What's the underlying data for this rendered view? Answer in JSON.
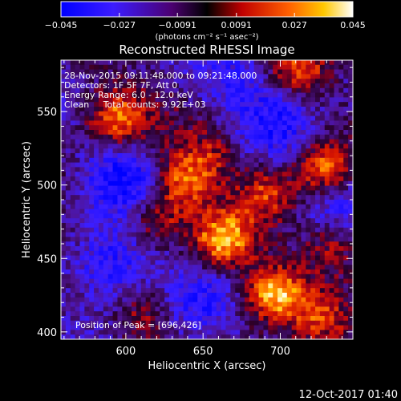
{
  "colorbar": {
    "min_label": "−0.045",
    "tick_labels": [
      "−0.027",
      "−0.0091",
      "0.0091",
      "0.027",
      "0.045"
    ],
    "unit_label": "(photons cm⁻² s⁻¹ asec⁻²)",
    "range": [
      -0.045,
      0.045
    ]
  },
  "title": "Reconstructed RHESSI Image",
  "info_lines": [
    "28-Nov-2015 09:11:48.000 to 09:21:48.000",
    "Detectors: 1F 5F 7F, Att 0",
    "Energy Range: 6.0 - 12.0 keV",
    "Clean     Total counts: 9.92E+03"
  ],
  "peak_text": "Position of Peak = [696,426]",
  "x_axis": {
    "label": "Heliocentric X (arcsec)",
    "ticks": [
      "600",
      "650",
      "700"
    ],
    "range": [
      558,
      747
    ]
  },
  "y_axis": {
    "label": "Heliocentric Y (arcsec)",
    "ticks": [
      "400",
      "450",
      "500",
      "550"
    ],
    "range": [
      395,
      585
    ]
  },
  "timestamp": "12-Oct-2017 01:40",
  "colors": {
    "background": "#000000",
    "text": "#ffffff"
  },
  "sources": [
    {
      "x": 663,
      "y": 462,
      "level": 1.0
    },
    {
      "x": 696,
      "y": 426,
      "level": 1.0
    },
    {
      "x": 729,
      "y": 510,
      "level": 0.95
    },
    {
      "x": 594,
      "y": 545,
      "level": 0.8
    },
    {
      "x": 637,
      "y": 503,
      "level": 0.75
    },
    {
      "x": 692,
      "y": 495,
      "level": 0.6
    },
    {
      "x": 620,
      "y": 478,
      "level": 0.55
    },
    {
      "x": 733,
      "y": 458,
      "level": 0.55
    },
    {
      "x": 712,
      "y": 580,
      "level": 0.6
    },
    {
      "x": 612,
      "y": 412,
      "level": 0.4
    },
    {
      "x": 727,
      "y": 410,
      "level": 0.45
    },
    {
      "x": 655,
      "y": 522,
      "level": 0.45
    }
  ],
  "dark_regions": [
    {
      "x": 590,
      "y": 445,
      "level": -0.7
    },
    {
      "x": 598,
      "y": 505,
      "level": -0.6
    },
    {
      "x": 700,
      "y": 545,
      "level": -0.5
    },
    {
      "x": 643,
      "y": 418,
      "level": -0.4
    },
    {
      "x": 740,
      "y": 495,
      "level": -0.5
    },
    {
      "x": 672,
      "y": 575,
      "level": -0.4
    }
  ]
}
